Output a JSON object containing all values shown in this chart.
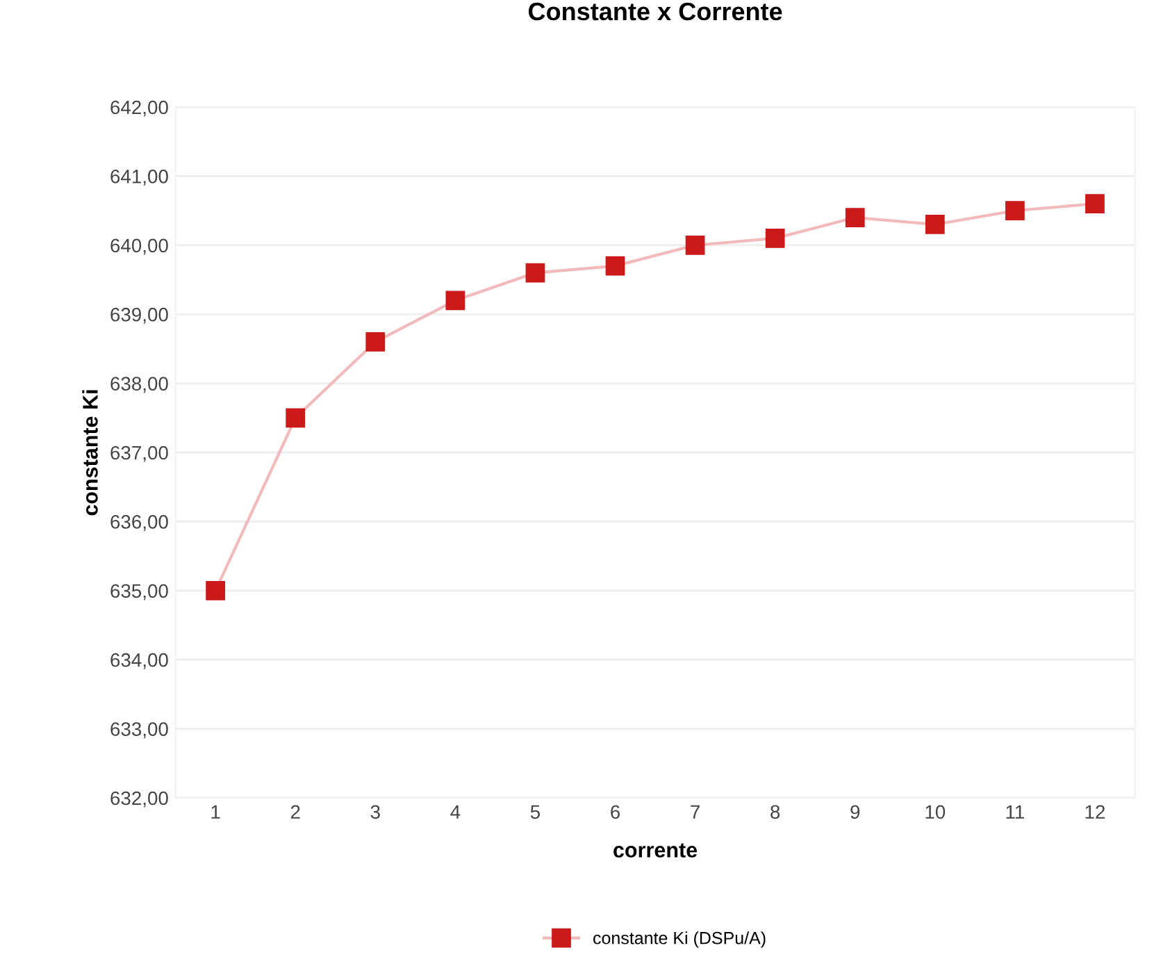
{
  "chart_data": {
    "type": "line",
    "title": "Constante x Corrente",
    "xlabel": "corrente",
    "ylabel": "constante Ki",
    "categories": [
      "1",
      "2",
      "3",
      "4",
      "5",
      "6",
      "7",
      "8",
      "9",
      "10",
      "11",
      "12"
    ],
    "series": [
      {
        "name": "constante Ki (DSPu/A)",
        "color": "#cc1a1a",
        "values": [
          635.0,
          637.5,
          638.6,
          639.2,
          639.6,
          639.7,
          640.0,
          640.1,
          640.4,
          640.3,
          640.5,
          640.6
        ]
      }
    ],
    "ylim": [
      632,
      642
    ],
    "yticks": [
      {
        "value": 632,
        "label": "632,00"
      },
      {
        "value": 633,
        "label": "633,00"
      },
      {
        "value": 634,
        "label": "634,00"
      },
      {
        "value": 635,
        "label": "635,00"
      },
      {
        "value": 636,
        "label": "636,00"
      },
      {
        "value": 637,
        "label": "637,00"
      },
      {
        "value": 638,
        "label": "638,00"
      },
      {
        "value": 639,
        "label": "639,00"
      },
      {
        "value": 640,
        "label": "640,00"
      },
      {
        "value": 641,
        "label": "641,00"
      },
      {
        "value": 642,
        "label": "642,00"
      }
    ],
    "grid": "y",
    "legend": "bottom",
    "marker": "square",
    "line_style": "solid"
  }
}
